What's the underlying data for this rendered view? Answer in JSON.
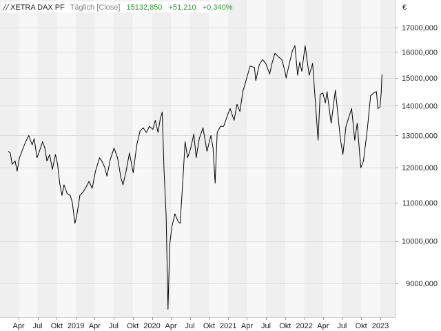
{
  "chart_data": {
    "type": "line",
    "header": {
      "symbol": "XETRA DAX PF",
      "interval": "Täglich [Close]",
      "last": "15132,850",
      "change": "+51,210",
      "change_pct": "+0,340%"
    },
    "currency": "€",
    "y_scale": "log",
    "ylim": [
      8300,
      17600
    ],
    "xlim": [
      "2018-02-10",
      "2023-01-10"
    ],
    "y_ticks": [
      {
        "value": 9000,
        "label": "9000,000"
      },
      {
        "value": 10000,
        "label": "10000,000"
      },
      {
        "value": 11000,
        "label": "11000,000"
      },
      {
        "value": 12000,
        "label": "12000,000"
      },
      {
        "value": 13000,
        "label": "13000,000"
      },
      {
        "value": 14000,
        "label": "14000,000"
      },
      {
        "value": 15000,
        "label": "15000,000"
      },
      {
        "value": 16000,
        "label": "16000,000"
      },
      {
        "value": 17000,
        "label": "17000,000"
      }
    ],
    "x_ticks": [
      {
        "date": "2018-04-01",
        "label": "Apr"
      },
      {
        "date": "2018-07-01",
        "label": "Jul"
      },
      {
        "date": "2018-10-01",
        "label": "Okt"
      },
      {
        "date": "2019-01-01",
        "label": "2019"
      },
      {
        "date": "2019-04-01",
        "label": "Apr"
      },
      {
        "date": "2019-07-01",
        "label": "Jul"
      },
      {
        "date": "2019-10-01",
        "label": "Okt"
      },
      {
        "date": "2020-01-01",
        "label": "2020"
      },
      {
        "date": "2020-04-01",
        "label": "Apr"
      },
      {
        "date": "2020-07-01",
        "label": "Jul"
      },
      {
        "date": "2020-10-01",
        "label": "Okt"
      },
      {
        "date": "2021-01-01",
        "label": "2021"
      },
      {
        "date": "2021-04-01",
        "label": "Apr"
      },
      {
        "date": "2021-07-01",
        "label": "Jul"
      },
      {
        "date": "2021-10-01",
        "label": "Okt"
      },
      {
        "date": "2022-01-01",
        "label": "2022"
      },
      {
        "date": "2022-04-01",
        "label": "Apr"
      },
      {
        "date": "2022-07-01",
        "label": "Jul"
      },
      {
        "date": "2022-10-01",
        "label": "Okt"
      },
      {
        "date": "2023-01-01",
        "label": "2023"
      }
    ],
    "grid": true,
    "series": [
      {
        "color": "#000000",
        "points": [
          [
            "2018-02-10",
            12500
          ],
          [
            "2018-02-20",
            12450
          ],
          [
            "2018-03-01",
            12100
          ],
          [
            "2018-03-15",
            12200
          ],
          [
            "2018-03-25",
            11900
          ],
          [
            "2018-04-05",
            12300
          ],
          [
            "2018-04-20",
            12550
          ],
          [
            "2018-05-05",
            12800
          ],
          [
            "2018-05-20",
            13000
          ],
          [
            "2018-05-25",
            12900
          ],
          [
            "2018-06-05",
            12700
          ],
          [
            "2018-06-15",
            12900
          ],
          [
            "2018-06-28",
            12300
          ],
          [
            "2018-07-10",
            12500
          ],
          [
            "2018-07-25",
            12800
          ],
          [
            "2018-08-05",
            12600
          ],
          [
            "2018-08-15",
            12200
          ],
          [
            "2018-08-28",
            12400
          ],
          [
            "2018-09-10",
            11950
          ],
          [
            "2018-09-25",
            12400
          ],
          [
            "2018-10-05",
            12100
          ],
          [
            "2018-10-15",
            11550
          ],
          [
            "2018-10-26",
            11200
          ],
          [
            "2018-11-05",
            11500
          ],
          [
            "2018-11-20",
            11250
          ],
          [
            "2018-12-05",
            11200
          ],
          [
            "2018-12-15",
            11000
          ],
          [
            "2018-12-27",
            10450
          ],
          [
            "2019-01-05",
            10650
          ],
          [
            "2019-01-20",
            11200
          ],
          [
            "2019-02-05",
            11300
          ],
          [
            "2019-02-20",
            11450
          ],
          [
            "2019-03-05",
            11600
          ],
          [
            "2019-03-20",
            11400
          ],
          [
            "2019-04-05",
            11900
          ],
          [
            "2019-04-25",
            12300
          ],
          [
            "2019-05-05",
            12200
          ],
          [
            "2019-05-20",
            12000
          ],
          [
            "2019-05-30",
            11750
          ],
          [
            "2019-06-15",
            12250
          ],
          [
            "2019-07-03",
            12600
          ],
          [
            "2019-07-20",
            12300
          ],
          [
            "2019-08-05",
            11700
          ],
          [
            "2019-08-15",
            11500
          ],
          [
            "2019-08-30",
            11900
          ],
          [
            "2019-09-15",
            12450
          ],
          [
            "2019-10-03",
            11850
          ],
          [
            "2019-10-20",
            12700
          ],
          [
            "2019-11-05",
            13150
          ],
          [
            "2019-11-20",
            13250
          ],
          [
            "2019-12-05",
            13100
          ],
          [
            "2019-12-20",
            13300
          ],
          [
            "2020-01-05",
            13200
          ],
          [
            "2020-01-17",
            13500
          ],
          [
            "2020-01-30",
            13100
          ],
          [
            "2020-02-10",
            13550
          ],
          [
            "2020-02-19",
            13780
          ],
          [
            "2020-02-28",
            11900
          ],
          [
            "2020-03-09",
            10650
          ],
          [
            "2020-03-18",
            8440
          ],
          [
            "2020-03-26",
            9900
          ],
          [
            "2020-04-05",
            10350
          ],
          [
            "2020-04-20",
            10700
          ],
          [
            "2020-05-05",
            10500
          ],
          [
            "2020-05-15",
            10450
          ],
          [
            "2020-05-28",
            11600
          ],
          [
            "2020-06-08",
            12800
          ],
          [
            "2020-06-20",
            12300
          ],
          [
            "2020-07-05",
            12600
          ],
          [
            "2020-07-20",
            13050
          ],
          [
            "2020-07-31",
            12300
          ],
          [
            "2020-08-15",
            12900
          ],
          [
            "2020-09-02",
            13250
          ],
          [
            "2020-09-21",
            12500
          ],
          [
            "2020-10-10",
            13000
          ],
          [
            "2020-10-20",
            12600
          ],
          [
            "2020-10-30",
            11550
          ],
          [
            "2020-11-09",
            13100
          ],
          [
            "2020-11-25",
            13300
          ],
          [
            "2020-12-10",
            13300
          ],
          [
            "2020-12-30",
            13700
          ],
          [
            "2021-01-10",
            13900
          ],
          [
            "2021-01-29",
            13500
          ],
          [
            "2021-02-12",
            14050
          ],
          [
            "2021-02-26",
            13800
          ],
          [
            "2021-03-12",
            14500
          ],
          [
            "2021-03-31",
            15000
          ],
          [
            "2021-04-16",
            15450
          ],
          [
            "2021-05-07",
            15400
          ],
          [
            "2021-05-13",
            14900
          ],
          [
            "2021-05-30",
            15500
          ],
          [
            "2021-06-15",
            15700
          ],
          [
            "2021-06-30",
            15550
          ],
          [
            "2021-07-19",
            15150
          ],
          [
            "2021-07-30",
            15550
          ],
          [
            "2021-08-13",
            15950
          ],
          [
            "2021-08-31",
            15800
          ],
          [
            "2021-09-15",
            15700
          ],
          [
            "2021-09-30",
            15250
          ],
          [
            "2021-10-06",
            15000
          ],
          [
            "2021-10-20",
            15500
          ],
          [
            "2021-11-05",
            16050
          ],
          [
            "2021-11-17",
            16250
          ],
          [
            "2021-11-30",
            15100
          ],
          [
            "2021-12-10",
            15600
          ],
          [
            "2021-12-20",
            15250
          ],
          [
            "2022-01-05",
            16250
          ],
          [
            "2022-01-24",
            15100
          ],
          [
            "2022-02-10",
            15550
          ],
          [
            "2022-02-24",
            14050
          ],
          [
            "2022-03-08",
            12850
          ],
          [
            "2022-03-18",
            14400
          ],
          [
            "2022-03-31",
            14450
          ],
          [
            "2022-04-12",
            14100
          ],
          [
            "2022-04-20",
            14500
          ],
          [
            "2022-05-10",
            13400
          ],
          [
            "2022-05-30",
            14550
          ],
          [
            "2022-06-10",
            13800
          ],
          [
            "2022-06-23",
            12900
          ],
          [
            "2022-07-05",
            12400
          ],
          [
            "2022-07-20",
            13300
          ],
          [
            "2022-08-16",
            13900
          ],
          [
            "2022-08-31",
            12850
          ],
          [
            "2022-09-12",
            13400
          ],
          [
            "2022-09-29",
            12000
          ],
          [
            "2022-10-12",
            12200
          ],
          [
            "2022-10-31",
            13250
          ],
          [
            "2022-11-15",
            14350
          ],
          [
            "2022-11-30",
            14450
          ],
          [
            "2022-12-13",
            14500
          ],
          [
            "2022-12-20",
            13900
          ],
          [
            "2022-12-30",
            13950
          ],
          [
            "2023-01-05",
            14450
          ],
          [
            "2023-01-09",
            15130
          ]
        ]
      }
    ]
  }
}
